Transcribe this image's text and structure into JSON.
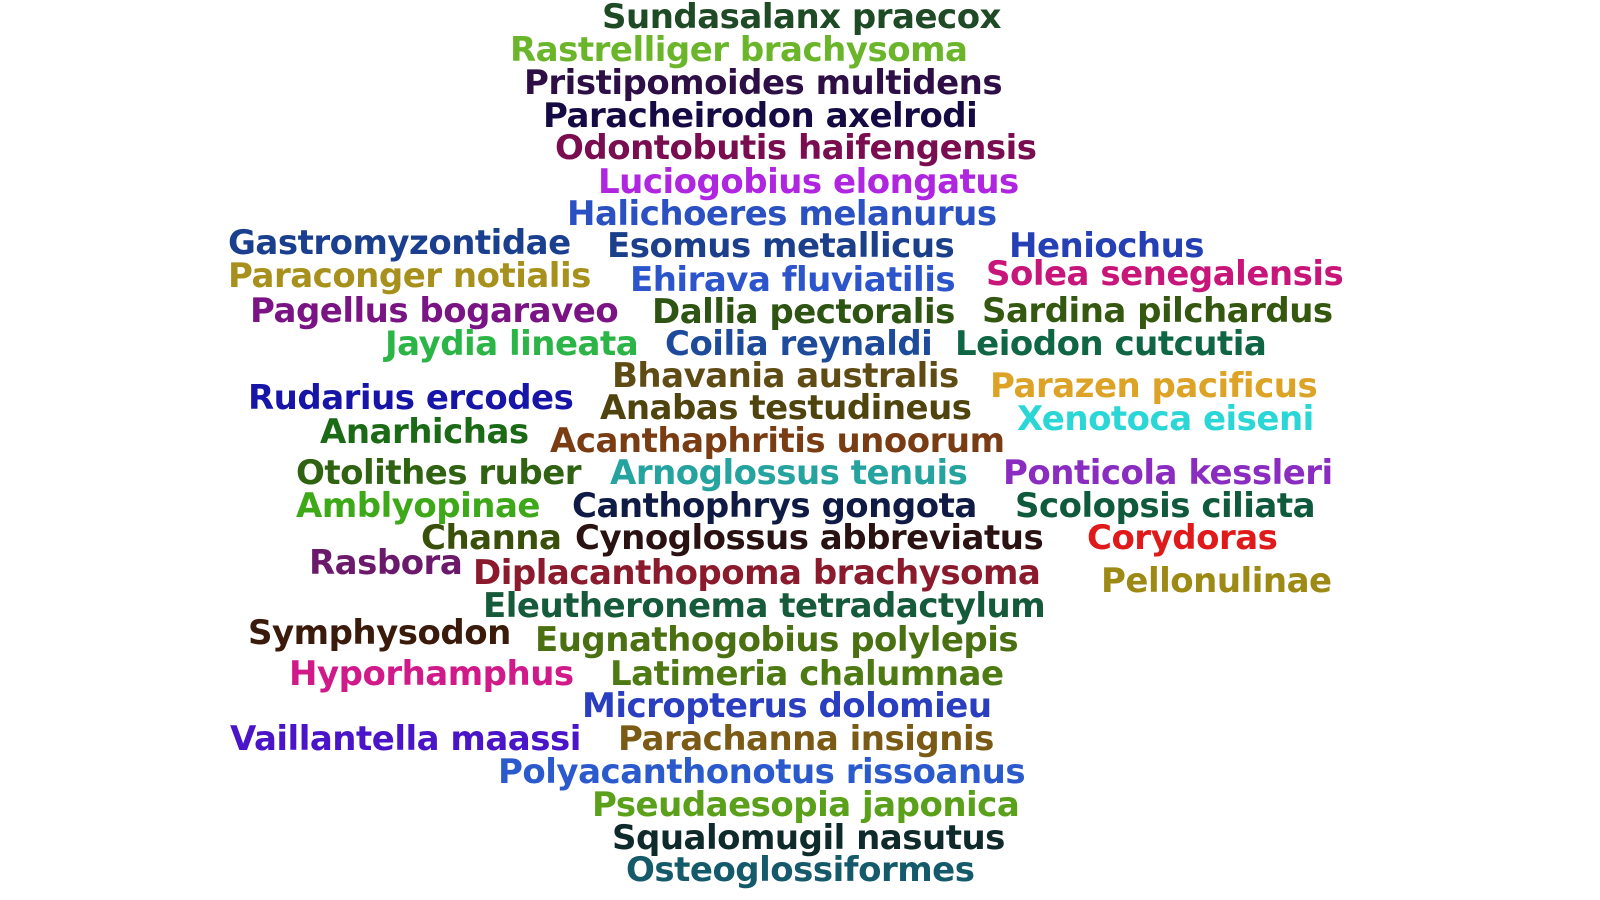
{
  "words": [
    {
      "text": "Sundasalanx praecox",
      "color": "#1f4a26"
    },
    {
      "text": "Rastrelliger brachysoma",
      "color": "#6bb52a"
    },
    {
      "text": "Pristipomoides multidens",
      "color": "#2d0f45"
    },
    {
      "text": "Paracheirodon axelrodi",
      "color": "#160a45"
    },
    {
      "text": "Odontobutis haifengensis",
      "color": "#7a0c50"
    },
    {
      "text": "Luciogobius elongatus",
      "color": "#b026e0"
    },
    {
      "text": "Halichoeres melanurus",
      "color": "#2a50c2"
    },
    {
      "text": "Gastromyzontidae",
      "color": "#1a3f8f"
    },
    {
      "text": "Esomus metallicus",
      "color": "#1c3f8c"
    },
    {
      "text": "Heniochus",
      "color": "#2540b5"
    },
    {
      "text": "Paraconger notialis",
      "color": "#a8901c"
    },
    {
      "text": "Ehirava fluviatilis",
      "color": "#2c55cc"
    },
    {
      "text": "Solea senegalensis",
      "color": "#c8157a"
    },
    {
      "text": "Pagellus bogaraveo",
      "color": "#7a1485"
    },
    {
      "text": "Dallia pectoralis",
      "color": "#2d5412"
    },
    {
      "text": "Sardina pilchardus",
      "color": "#34580f"
    },
    {
      "text": "Jaydia lineata",
      "color": "#2cb547"
    },
    {
      "text": "Coilia reynaldi",
      "color": "#1d4a9a"
    },
    {
      "text": "Leiodon cutcutia",
      "color": "#0f6644"
    },
    {
      "text": "Bhavania australis",
      "color": "#5f4b14"
    },
    {
      "text": "Rudarius ercodes",
      "color": "#1714a8"
    },
    {
      "text": "Parazen pacificus",
      "color": "#dca326"
    },
    {
      "text": "Anabas testudineus",
      "color": "#4f430e"
    },
    {
      "text": "Xenotoca eiseni",
      "color": "#2ad6d6"
    },
    {
      "text": "Anarhichas",
      "color": "#1b6b16"
    },
    {
      "text": "Acanthaphritis unoorum",
      "color": "#7a3c12"
    },
    {
      "text": "Otolithes ruber",
      "color": "#2f6312"
    },
    {
      "text": "Arnoglossus tenuis",
      "color": "#25a39e"
    },
    {
      "text": "Ponticola kessleri",
      "color": "#8a2cc0"
    },
    {
      "text": "Amblyopinae",
      "color": "#3da818"
    },
    {
      "text": "Canthophrys gongota",
      "color": "#0f1a45"
    },
    {
      "text": "Scolopsis ciliata",
      "color": "#0f5a3c"
    },
    {
      "text": "Channa",
      "color": "#3a4f0a"
    },
    {
      "text": "Cynoglossus abbreviatus",
      "color": "#2a1212"
    },
    {
      "text": "Corydoras",
      "color": "#e01a1a"
    },
    {
      "text": "Rasbora",
      "color": "#6b1a6b"
    },
    {
      "text": "Diplacanthopoma brachysoma",
      "color": "#8a1a2c"
    },
    {
      "text": "Pellonulinae",
      "color": "#9c8a14"
    },
    {
      "text": "Eleutheronema tetradactylum",
      "color": "#155a3a"
    },
    {
      "text": "Symphysodon",
      "color": "#3a1a0a"
    },
    {
      "text": "Eugnathogobius polylepis",
      "color": "#4a7012"
    },
    {
      "text": "Hyporhamphus",
      "color": "#d01a8a"
    },
    {
      "text": "Latimeria chalumnae",
      "color": "#4d7a12"
    },
    {
      "text": "Micropterus dolomieu",
      "color": "#2a3ec0"
    },
    {
      "text": "Vaillantella maassi",
      "color": "#4a14c8"
    },
    {
      "text": "Parachanna insignis",
      "color": "#7a5a14"
    },
    {
      "text": "Polyacanthonotus rissoanus",
      "color": "#2a5acc"
    },
    {
      "text": "Pseudaesopia japonica",
      "color": "#5aa01a"
    },
    {
      "text": "Squalomugil nasutus",
      "color": "#0f2a2a"
    },
    {
      "text": "Osteoglossiformes",
      "color": "#155a6a"
    }
  ]
}
